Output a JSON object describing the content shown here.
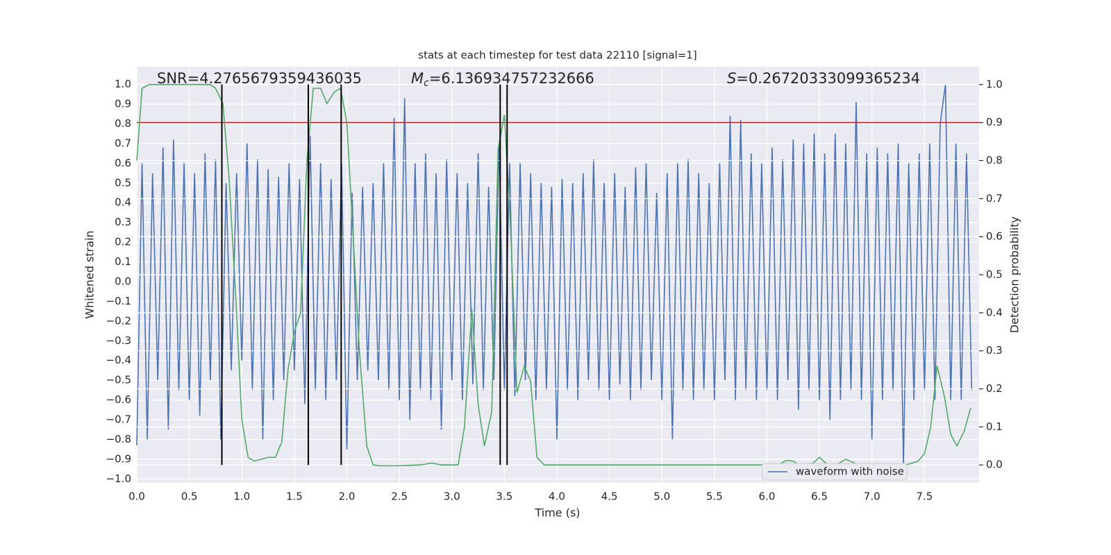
{
  "chart_data": {
    "type": "line",
    "title": "stats at each timestep for test data 22110 [signal=1]",
    "xlabel": "Time (s)",
    "ylabel": "Whitened strain",
    "y2label": "Detection probability",
    "xlim": [
      0,
      8.02
    ],
    "ylim": [
      -1.02,
      1.09
    ],
    "y2lim": [
      -0.047,
      1.047
    ],
    "xticks": [
      {
        "value": 0,
        "label": "0.0"
      },
      0.5,
      {
        "value": 1,
        "label": "1.0"
      },
      1.5,
      {
        "value": 2,
        "label": "2.0"
      },
      2.5,
      {
        "value": 3,
        "label": "3.0"
      },
      3.5,
      {
        "value": 4,
        "label": "4.0"
      },
      4.5,
      {
        "value": 5,
        "label": "5.0"
      },
      5.5,
      {
        "value": 6,
        "label": "6.0"
      },
      6.5,
      {
        "value": 7,
        "label": "7.0"
      },
      7.5
    ],
    "yticks": [
      {
        "value": -1,
        "label": "−1.0"
      },
      {
        "value": -0.9,
        "label": "−0.9"
      },
      {
        "value": -0.8,
        "label": "−0.8"
      },
      {
        "value": -0.7,
        "label": "−0.7"
      },
      {
        "value": -0.6,
        "label": "−0.6"
      },
      {
        "value": -0.5,
        "label": "−0.5"
      },
      {
        "value": -0.4,
        "label": "−0.4"
      },
      {
        "value": -0.3,
        "label": "−0.3"
      },
      {
        "value": -0.2,
        "label": "−0.2"
      },
      {
        "value": -0.1,
        "label": "−0.1"
      },
      {
        "value": 0,
        "label": "0.0"
      },
      0.1,
      0.2,
      0.3,
      0.4,
      0.5,
      0.6,
      0.7,
      0.8,
      0.9,
      {
        "value": 1,
        "label": "1.0"
      }
    ],
    "y2ticks": [
      {
        "value": 0,
        "label": "0.0"
      },
      0.1,
      0.2,
      0.3,
      0.4,
      0.5,
      0.6,
      0.7,
      0.8,
      0.9,
      {
        "value": 1,
        "label": "1.0"
      }
    ],
    "grid": true,
    "background": "#eaeaf2",
    "legend": "lower right",
    "series": [
      {
        "name": "waveform with noise",
        "color": "#4c72b0",
        "x": [
          0,
          0.05,
          0.1,
          0.15,
          0.2,
          0.25,
          0.3,
          0.35,
          0.4,
          0.45,
          0.5,
          0.55,
          0.6,
          0.65,
          0.7,
          0.75,
          0.8,
          0.85,
          0.9,
          0.95,
          1,
          1.05,
          1.1,
          1.15,
          1.2,
          1.25,
          1.3,
          1.35,
          1.4,
          1.45,
          1.5,
          1.55,
          1.6,
          1.65,
          1.7,
          1.75,
          1.8,
          1.85,
          1.9,
          1.95,
          2,
          2.05,
          2.1,
          2.15,
          2.2,
          2.25,
          2.3,
          2.35,
          2.4,
          2.45,
          2.5,
          2.55,
          2.6,
          2.65,
          2.7,
          2.75,
          2.8,
          2.85,
          2.9,
          2.95,
          3,
          3.05,
          3.1,
          3.15,
          3.2,
          3.25,
          3.3,
          3.35,
          3.4,
          3.45,
          3.5,
          3.55,
          3.6,
          3.65,
          3.7,
          3.75,
          3.8,
          3.85,
          3.9,
          3.95,
          4,
          4.05,
          4.1,
          4.15,
          4.2,
          4.25,
          4.3,
          4.35,
          4.4,
          4.45,
          4.5,
          4.55,
          4.6,
          4.65,
          4.7,
          4.75,
          4.8,
          4.85,
          4.9,
          4.95,
          5,
          5.05,
          5.1,
          5.15,
          5.2,
          5.25,
          5.3,
          5.35,
          5.4,
          5.45,
          5.5,
          5.55,
          5.6,
          5.65,
          5.7,
          5.75,
          5.8,
          5.85,
          5.9,
          5.95,
          6,
          6.05,
          6.1,
          6.15,
          6.2,
          6.25,
          6.3,
          6.35,
          6.4,
          6.45,
          6.5,
          6.55,
          6.6,
          6.65,
          6.7,
          6.75,
          6.8,
          6.85,
          6.9,
          6.95,
          7,
          7.05,
          7.1,
          7.15,
          7.2,
          7.25,
          7.3,
          7.35,
          7.4,
          7.45,
          7.5,
          7.55,
          7.6,
          7.65,
          7.7,
          7.75,
          7.8,
          7.85,
          7.9,
          7.95
        ],
        "values": [
          -0.83,
          0.6,
          -0.8,
          0.55,
          -0.5,
          0.68,
          -0.75,
          0.72,
          -0.55,
          0.6,
          -0.6,
          0.55,
          -0.68,
          0.65,
          -0.5,
          0.62,
          -0.8,
          0.5,
          -0.45,
          0.55,
          -0.4,
          0.7,
          -0.55,
          0.62,
          -0.8,
          0.57,
          -0.6,
          0.53,
          -0.5,
          0.6,
          -0.45,
          0.52,
          -0.62,
          0.74,
          -0.55,
          0.6,
          -0.6,
          0.52,
          -0.5,
          0.6,
          -0.85,
          0.45,
          -0.5,
          0.48,
          -0.45,
          0.5,
          -0.5,
          0.6,
          -0.55,
          0.83,
          -0.6,
          0.93,
          -0.7,
          0.6,
          -0.55,
          0.65,
          -0.6,
          0.55,
          -0.75,
          0.62,
          -0.5,
          0.55,
          -0.6,
          0.5,
          -0.52,
          0.65,
          -0.55,
          0.48,
          -0.5,
          0.7,
          -0.55,
          0.6,
          -0.58,
          0.6,
          -0.5,
          0.55,
          -0.6,
          0.5,
          -0.55,
          0.48,
          -0.8,
          0.52,
          -0.55,
          0.5,
          -0.6,
          0.55,
          -0.5,
          0.62,
          -0.55,
          0.5,
          -0.6,
          0.55,
          -0.52,
          0.48,
          -0.6,
          0.58,
          -0.55,
          0.6,
          -0.5,
          0.45,
          -0.6,
          0.55,
          -0.8,
          0.6,
          -0.55,
          0.62,
          -0.6,
          0.55,
          -0.55,
          0.5,
          -0.6,
          0.6,
          -0.5,
          0.84,
          -0.6,
          0.82,
          -0.55,
          0.65,
          -0.6,
          0.6,
          -0.55,
          0.68,
          -0.6,
          0.62,
          -0.5,
          0.72,
          -0.65,
          0.7,
          -0.55,
          0.75,
          -0.6,
          0.65,
          -0.7,
          0.75,
          -0.6,
          0.7,
          -0.55,
          0.91,
          -0.6,
          0.65,
          -0.8,
          0.68,
          -0.6,
          0.65,
          -0.55,
          0.7,
          -0.93,
          0.6,
          -0.6,
          0.65,
          -0.55,
          0.7,
          -0.6,
          0.8,
          1.0,
          -0.6,
          0.7,
          -0.6,
          0.65,
          -0.55
        ]
      },
      {
        "color": "#55a868",
        "axis": "y2",
        "x": [
          0,
          0.05,
          0.12,
          0.7,
          0.75,
          0.82,
          0.88,
          0.95,
          1,
          1.06,
          1.12,
          1.25,
          1.32,
          1.38,
          1.44,
          1.5,
          1.56,
          1.62,
          1.68,
          1.75,
          1.81,
          1.88,
          1.94,
          2,
          2.06,
          2.12,
          2.19,
          2.25,
          2.31,
          2.5,
          2.7,
          2.81,
          2.9,
          3.06,
          3.12,
          3.19,
          3.25,
          3.31,
          3.38,
          3.44,
          3.5,
          3.56,
          3.62,
          3.69,
          3.75,
          3.81,
          3.88,
          4.5,
          5,
          6,
          6.12,
          6.19,
          6.25,
          6.31,
          6.44,
          6.5,
          6.56,
          6.62,
          6.69,
          6.75,
          6.88,
          7.3,
          7.44,
          7.5,
          7.56,
          7.62,
          7.69,
          7.75,
          7.81,
          7.88,
          7.94
        ],
        "values": [
          0.8,
          0.99,
          1,
          1,
          0.99,
          0.95,
          0.75,
          0.4,
          0.12,
          0.02,
          0.01,
          0.02,
          0.02,
          0.06,
          0.25,
          0.35,
          0.4,
          0.8,
          0.99,
          0.99,
          0.95,
          0.98,
          0.99,
          0.9,
          0.6,
          0.3,
          0.05,
          0,
          -0.002,
          -0.002,
          0,
          0.005,
          0,
          0,
          0.1,
          0.41,
          0.16,
          0.05,
          0.14,
          0.83,
          0.92,
          0.62,
          0.19,
          0.26,
          0.22,
          0.02,
          0,
          0,
          0,
          0,
          0.003,
          0.012,
          0.01,
          0,
          0.005,
          0.02,
          0.005,
          0,
          0.005,
          0.015,
          0,
          -0.002,
          0.01,
          0.03,
          0.1,
          0.26,
          0.18,
          0.08,
          0.05,
          0.09,
          0.15
        ]
      }
    ],
    "threshold": {
      "value": 0.9,
      "axis": "y2",
      "color": "#b22222"
    },
    "vlines": {
      "x": [
        0.81,
        1.633,
        1.946,
        3.46,
        3.526
      ],
      "y2range": [
        0,
        1
      ],
      "color": "#000000"
    },
    "annotations": [
      {
        "text": "SNR=4.2765679359436035"
      },
      {
        "symbol": "M",
        "subscript": "c",
        "text": "=6.136934757232666"
      },
      {
        "symbol": "S",
        "text": "=0.26720333099365234"
      }
    ]
  }
}
